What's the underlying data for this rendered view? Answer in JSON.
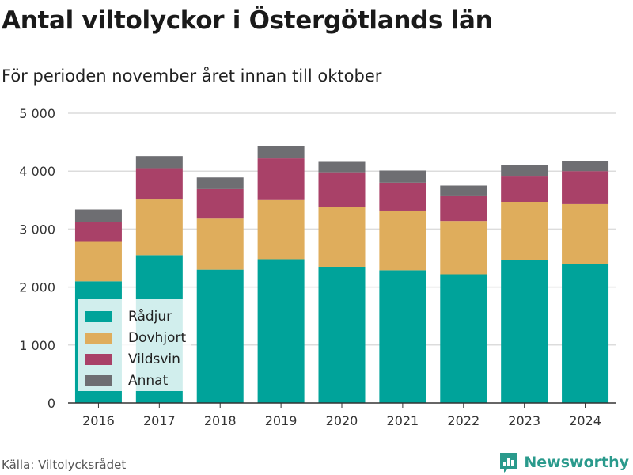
{
  "title": "Antal viltolyckor i Östergötlands län",
  "subtitle": "För perioden november året innan till oktober",
  "source": "Källa: Viltolycksrådet",
  "brand": {
    "name": "Newsworthy",
    "icon": "bar-chart-logo-icon",
    "color": "#2a9a8c"
  },
  "chart_data": {
    "type": "bar",
    "stacked": true,
    "categories": [
      "2016",
      "2017",
      "2018",
      "2019",
      "2020",
      "2021",
      "2022",
      "2023",
      "2024"
    ],
    "ylim": [
      0,
      5000
    ],
    "yticks": [
      0,
      1000,
      2000,
      3000,
      4000,
      5000
    ],
    "ytick_labels": [
      "0",
      "1 000",
      "2 000",
      "3 000",
      "4 000",
      "5 000"
    ],
    "grid": true,
    "legend_position": "bottom-left",
    "series": [
      {
        "name": "Rådjur",
        "color": "#00a39a",
        "values": [
          2100,
          2550,
          2300,
          2480,
          2350,
          2290,
          2220,
          2460,
          2400
        ]
      },
      {
        "name": "Dovhjort",
        "color": "#dfad5c",
        "values": [
          680,
          960,
          880,
          1020,
          1030,
          1030,
          920,
          1010,
          1030
        ]
      },
      {
        "name": "Vildsvin",
        "color": "#a94168",
        "values": [
          340,
          540,
          510,
          720,
          600,
          480,
          440,
          450,
          570
        ]
      },
      {
        "name": "Annat",
        "color": "#6e6e72",
        "values": [
          220,
          210,
          200,
          210,
          180,
          210,
          170,
          190,
          180
        ]
      }
    ]
  }
}
